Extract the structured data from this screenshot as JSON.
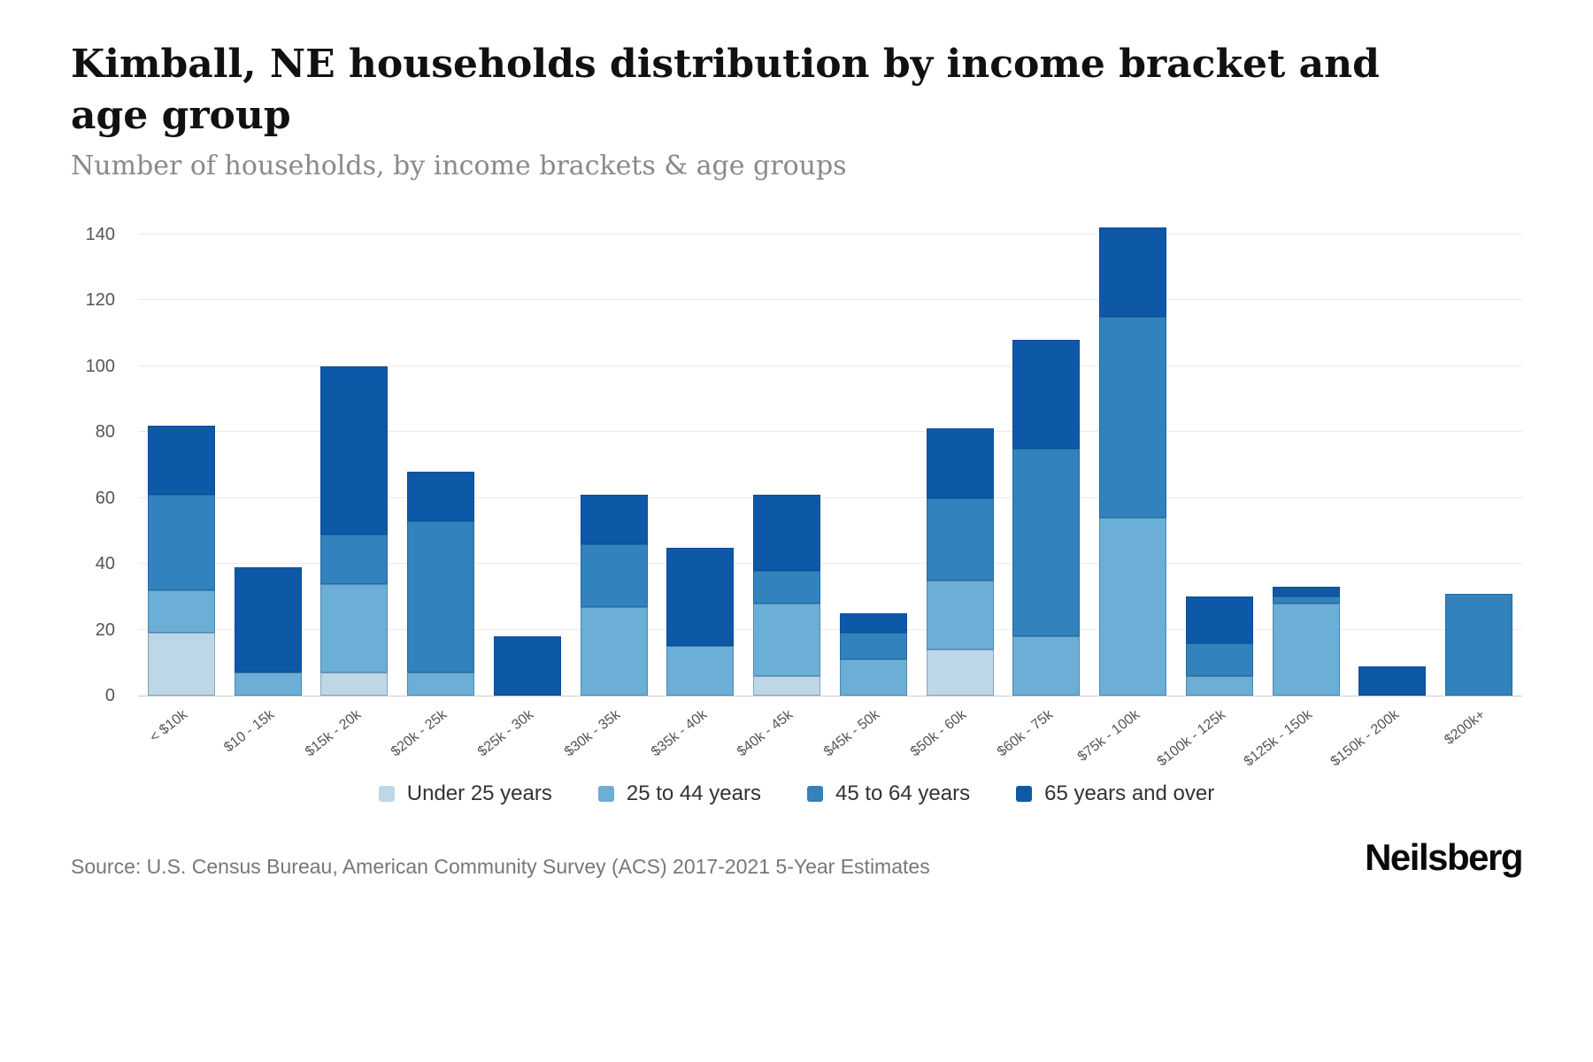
{
  "header": {
    "title": "Kimball, NE households distribution by income bracket and age group",
    "subtitle": "Number of households, by income brackets & age groups"
  },
  "footer": {
    "source": "Source: U.S. Census Bureau, American Community Survey (ACS) 2017-2021 5-Year Estimates",
    "brand": "Neilsberg"
  },
  "chart_data": {
    "type": "bar",
    "stacked": true,
    "title": "Kimball, NE households distribution by income bracket and age group",
    "subtitle": "Number of households, by income brackets & age groups",
    "ylabel": "Number of households",
    "categories": [
      "< $10k",
      "$10 - 15k",
      "$15k - 20k",
      "$20k - 25k",
      "$25k - 30k",
      "$30k - 35k",
      "$35k - 40k",
      "$40k - 45k",
      "$45k - 50k",
      "$50k - 60k",
      "$60k - 75k",
      "$75k - 100k",
      "$100k - 125k",
      "$125k - 150k",
      "$150k - 200k",
      "$200k+"
    ],
    "series": [
      {
        "name": "Under 25 years",
        "color": "#bdd7e7",
        "values": [
          19,
          0,
          7,
          0,
          0,
          0,
          0,
          6,
          0,
          14,
          0,
          0,
          0,
          0,
          0,
          0
        ]
      },
      {
        "name": "25 to 44 years",
        "color": "#6baed6",
        "values": [
          13,
          7,
          27,
          7,
          0,
          27,
          15,
          22,
          11,
          21,
          18,
          54,
          6,
          28,
          0,
          0
        ]
      },
      {
        "name": "45 to 64 years",
        "color": "#3182bd",
        "values": [
          29,
          0,
          15,
          46,
          0,
          19,
          0,
          10,
          8,
          25,
          57,
          61,
          10,
          2,
          0,
          31
        ]
      },
      {
        "name": "65 years and over",
        "color": "#0d59a8",
        "values": [
          21,
          32,
          51,
          15,
          18,
          15,
          30,
          23,
          6,
          21,
          33,
          27,
          14,
          3,
          9,
          0
        ]
      }
    ],
    "totals": [
      82,
      39,
      100,
      68,
      18,
      61,
      45,
      61,
      25,
      81,
      108,
      142,
      30,
      33,
      9,
      31
    ],
    "ylim": [
      0,
      140
    ],
    "yticks": [
      0,
      20,
      40,
      60,
      80,
      100,
      120,
      140
    ],
    "grid": true,
    "legend_position": "bottom"
  }
}
